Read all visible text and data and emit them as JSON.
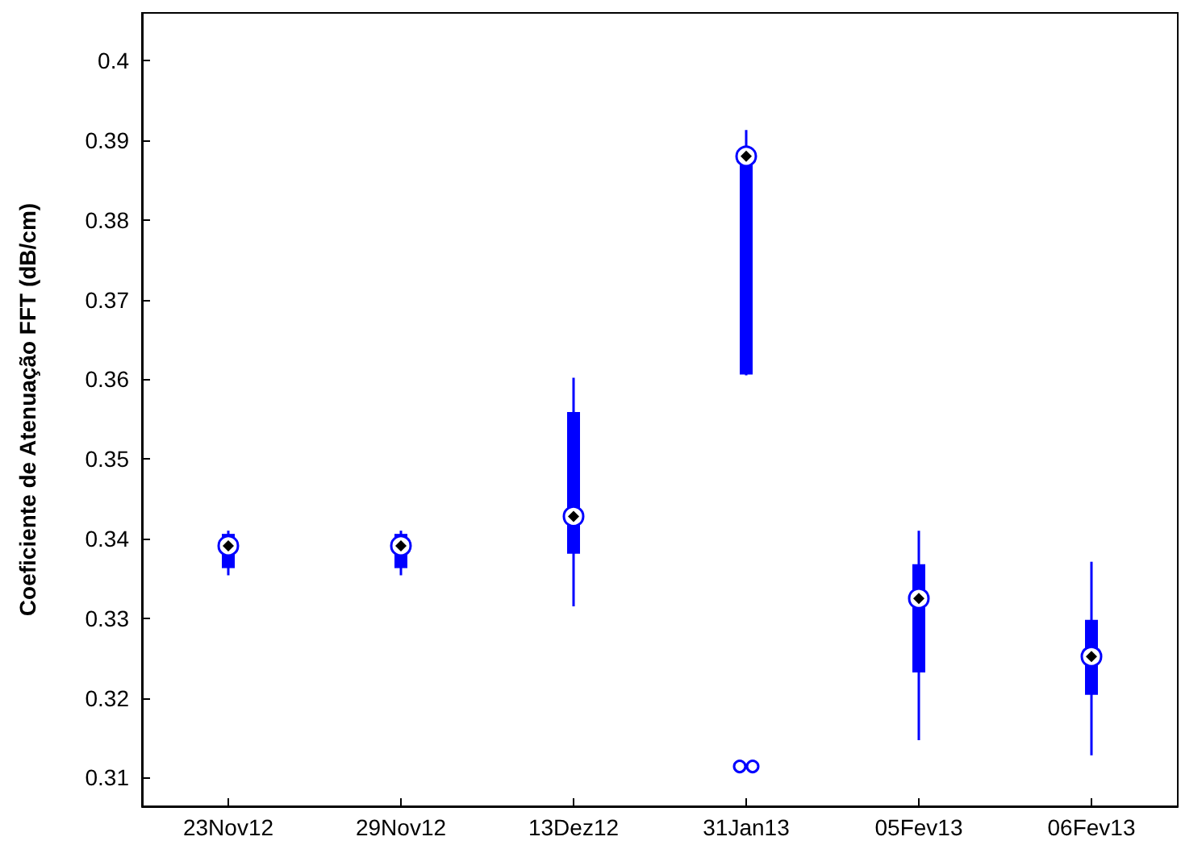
{
  "chart_data": {
    "type": "box",
    "ylabel": "Coeficiente de Atenuação FFT (dB/cm)",
    "categories": [
      "23Nov12",
      "29Nov12",
      "13Dez12",
      "31Jan13",
      "05Fev13",
      "06Fev13"
    ],
    "color": "#0000ff",
    "boxes": [
      {
        "low": 0.3354,
        "q1": 0.3363,
        "median": 0.3391,
        "q3": 0.3406,
        "high": 0.341
      },
      {
        "low": 0.3354,
        "q1": 0.3363,
        "median": 0.3391,
        "q3": 0.3406,
        "high": 0.341
      },
      {
        "low": 0.3315,
        "q1": 0.3381,
        "median": 0.3428,
        "q3": 0.3559,
        "high": 0.3602
      },
      {
        "low": 0.3605,
        "q1": 0.3606,
        "median": 0.388,
        "q3": 0.3885,
        "high": 0.3913,
        "outliers": [
          0.3114,
          0.3114
        ]
      },
      {
        "low": 0.3147,
        "q1": 0.3232,
        "median": 0.3325,
        "q3": 0.3368,
        "high": 0.341
      },
      {
        "low": 0.3128,
        "q1": 0.3204,
        "median": 0.3252,
        "q3": 0.3298,
        "high": 0.3371
      }
    ],
    "ylim": [
      0.3064,
      0.406
    ],
    "yticks": [
      0.31,
      0.32,
      0.33,
      0.34,
      0.35,
      0.36,
      0.37,
      0.38,
      0.39,
      0.4
    ],
    "grid": false
  }
}
